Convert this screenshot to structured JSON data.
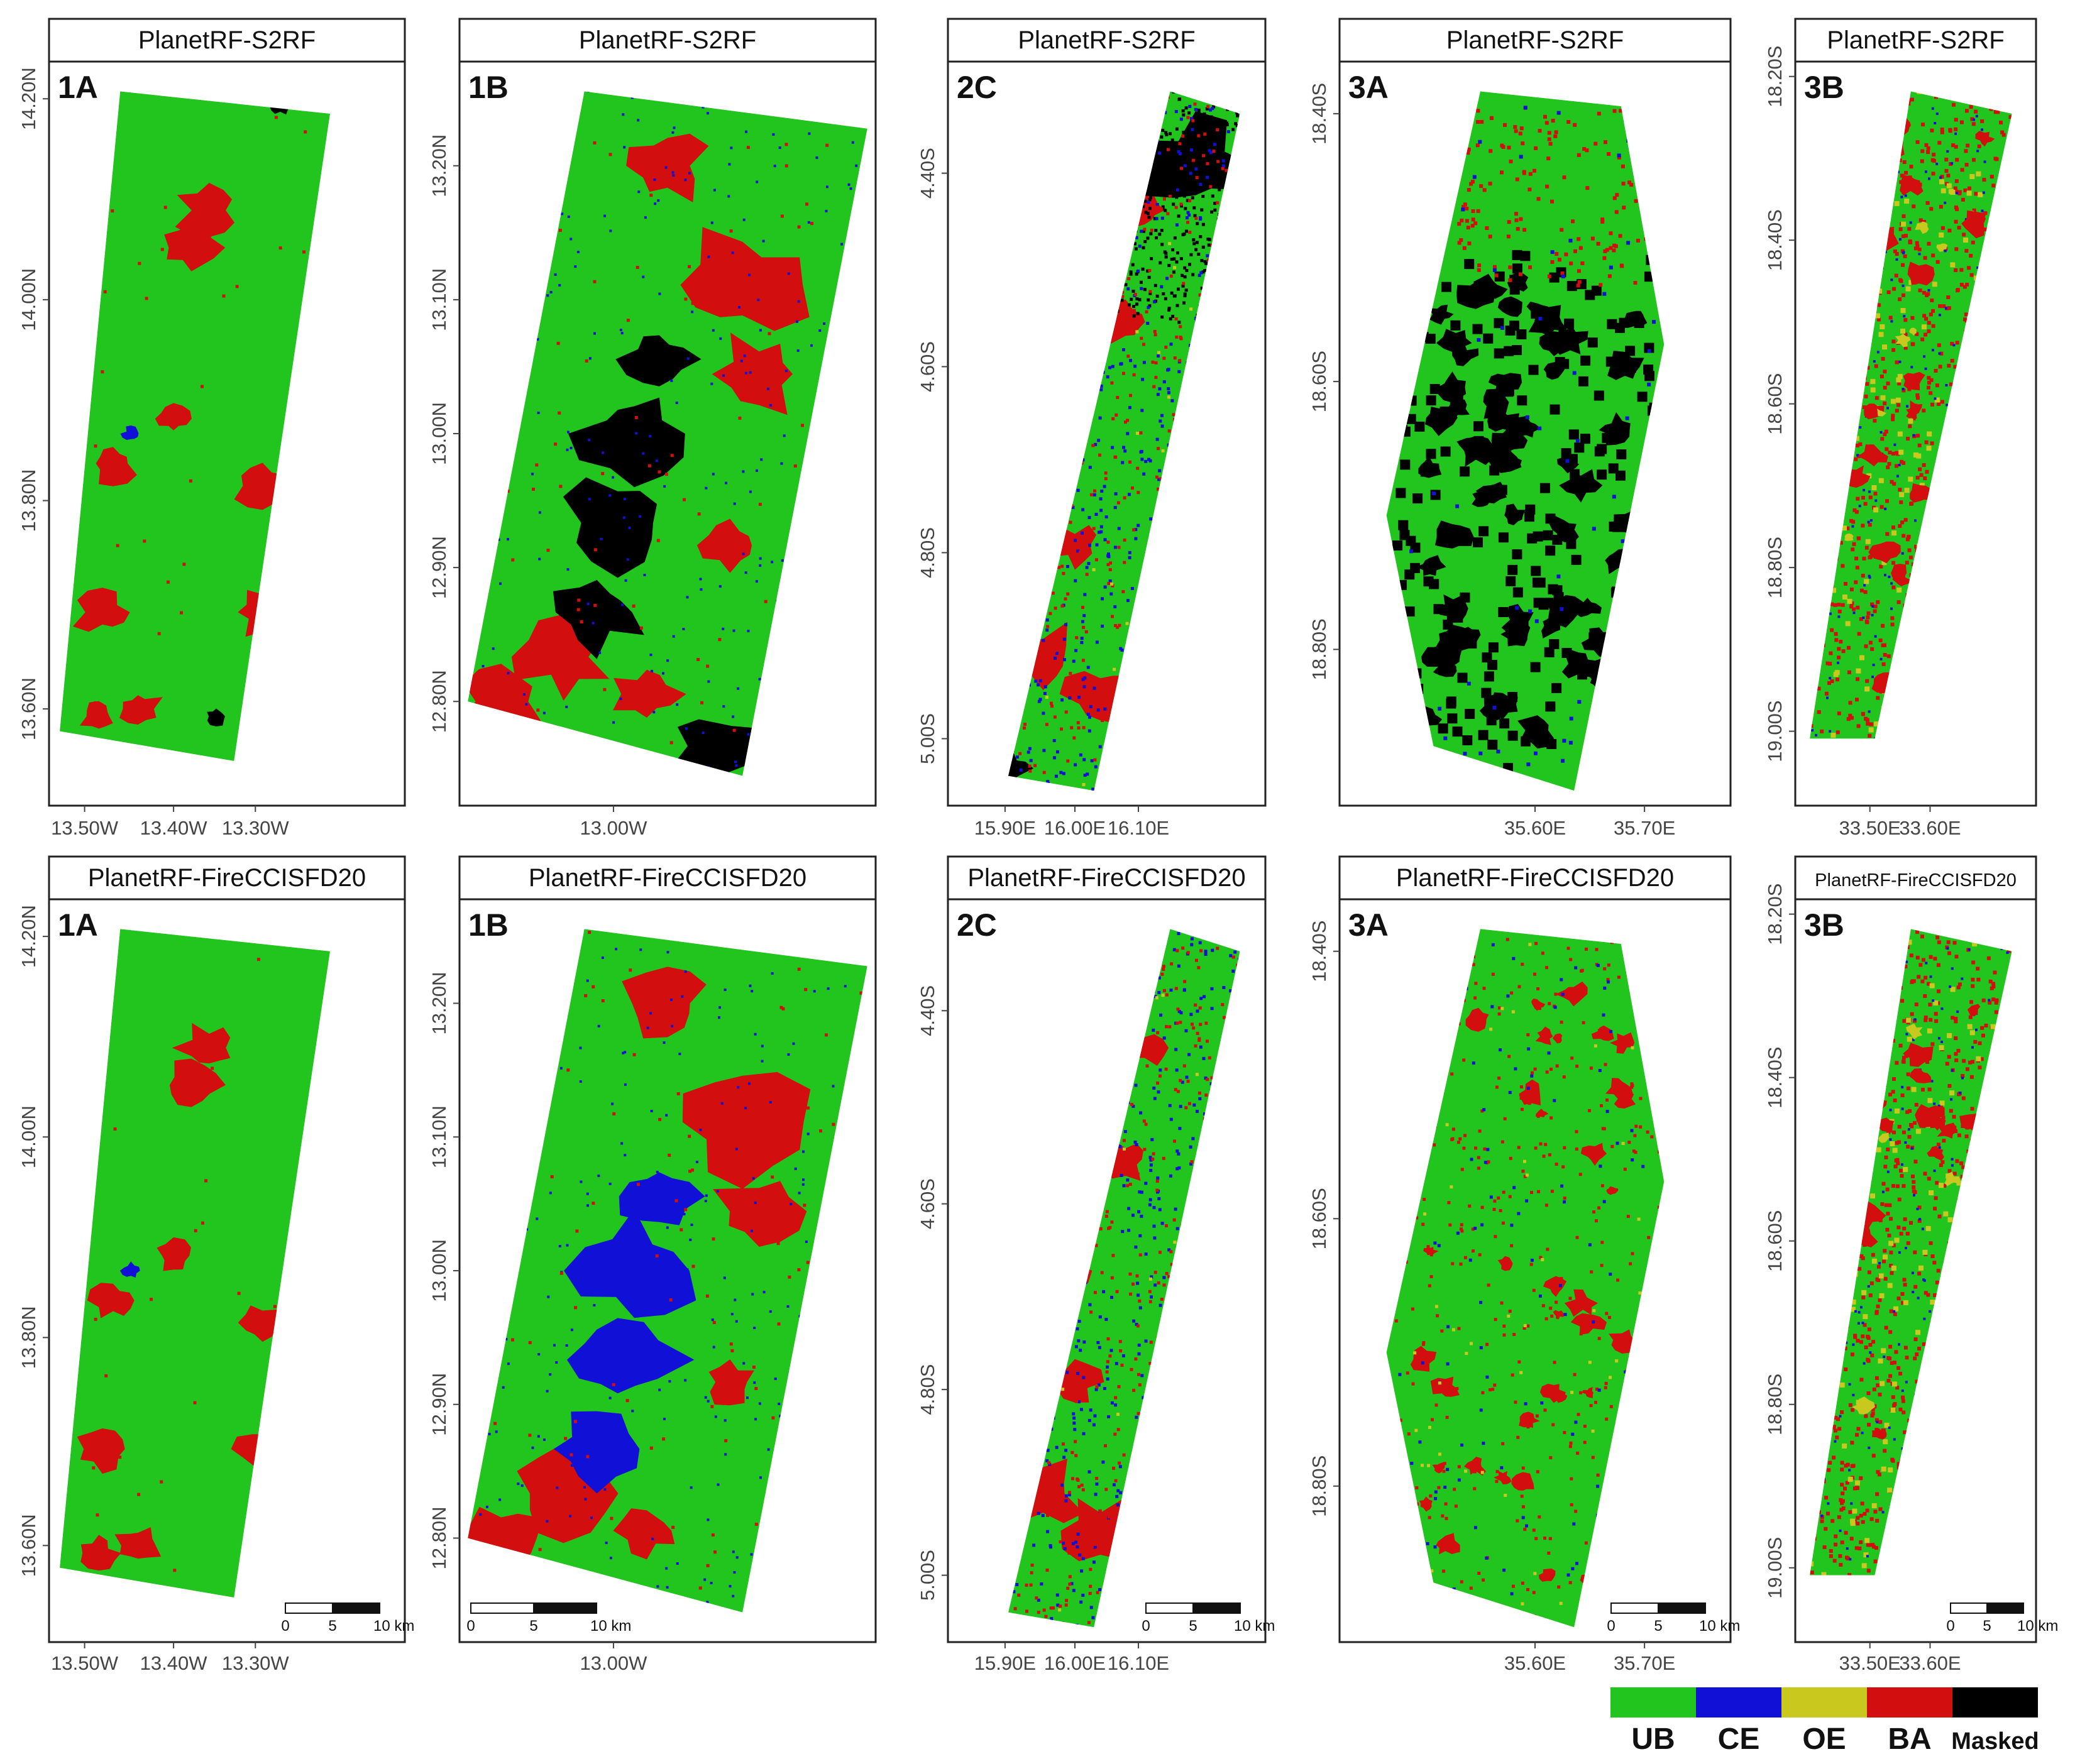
{
  "colors": {
    "UB": "#22c41e",
    "CE": "#1010d6",
    "OE": "#c8c81e",
    "BA": "#d20e0e",
    "Masked": "#000000"
  },
  "legend": [
    {
      "label": "UB",
      "color": "#22c41e"
    },
    {
      "label": "CE",
      "color": "#1010d6"
    },
    {
      "label": "OE",
      "color": "#c8c81e"
    },
    {
      "label": "BA",
      "color": "#d20e0e"
    },
    {
      "label": "Masked",
      "color": "#000000"
    }
  ],
  "panels": [
    {
      "id": "r1c1",
      "title": "PlanetRF-S2RF",
      "label": "1A",
      "lat_ticks": [
        "14.20N",
        "14.00N",
        "13.80N",
        "13.60N"
      ],
      "lon_ticks": [
        "13.50W",
        "13.40W",
        "13.30W"
      ],
      "scalebar": null
    },
    {
      "id": "r1c2",
      "title": "PlanetRF-S2RF",
      "label": "1B",
      "lat_ticks": [
        "13.20N",
        "13.10N",
        "13.00N",
        "12.90N",
        "12.80N"
      ],
      "lon_ticks": [
        "13.00W"
      ],
      "scalebar": null
    },
    {
      "id": "r1c3",
      "title": "PlanetRF-S2RF",
      "label": "2C",
      "lat_ticks": [
        "4.40S",
        "4.60S",
        "4.80S",
        "5.00S"
      ],
      "lon_ticks": [
        "15.90E",
        "16.00E",
        "16.10E"
      ],
      "scalebar": null
    },
    {
      "id": "r1c4",
      "title": "PlanetRF-S2RF",
      "label": "3A",
      "lat_ticks": [
        "18.40S",
        "18.60S",
        "18.80S"
      ],
      "lon_ticks": [
        "35.60E",
        "35.70E"
      ],
      "scalebar": null
    },
    {
      "id": "r1c5",
      "title": "PlanetRF-S2RF",
      "label": "3B",
      "lat_ticks": [
        "18.20S",
        "18.40S",
        "18.60S",
        "18.80S",
        "19.00S"
      ],
      "lon_ticks": [
        "33.50E",
        "33.60E"
      ],
      "scalebar": null
    },
    {
      "id": "r2c1",
      "title": "PlanetRF-FireCCISFD20",
      "label": "1A",
      "lat_ticks": [
        "14.20N",
        "14.00N",
        "13.80N",
        "13.60N"
      ],
      "lon_ticks": [
        "13.50W",
        "13.40W",
        "13.30W"
      ],
      "scalebar": {
        "labels": [
          "0",
          "5",
          "10 km"
        ]
      }
    },
    {
      "id": "r2c2",
      "title": "PlanetRF-FireCCISFD20",
      "label": "1B",
      "lat_ticks": [
        "13.20N",
        "13.10N",
        "13.00N",
        "12.90N",
        "12.80N"
      ],
      "lon_ticks": [
        "13.00W"
      ],
      "scalebar": {
        "labels": [
          "0",
          "5",
          "10 km"
        ]
      }
    },
    {
      "id": "r2c3",
      "title": "PlanetRF-FireCCISFD20",
      "label": "2C",
      "lat_ticks": [
        "4.40S",
        "4.60S",
        "4.80S",
        "5.00S"
      ],
      "lon_ticks": [
        "15.90E",
        "16.00E",
        "16.10E"
      ],
      "scalebar": {
        "labels": [
          "0",
          "5",
          "10 km"
        ]
      }
    },
    {
      "id": "r2c4",
      "title": "PlanetRF-FireCCISFD20",
      "label": "3A",
      "lat_ticks": [
        "18.40S",
        "18.60S",
        "18.80S"
      ],
      "lon_ticks": [
        "35.60E",
        "35.70E"
      ],
      "scalebar": {
        "labels": [
          "0",
          "5",
          "10 km"
        ]
      }
    },
    {
      "id": "r2c5",
      "title": "PlanetRF-FireCCISFD20",
      "label": "3B",
      "lat_ticks": [
        "18.20S",
        "18.40S",
        "18.60S",
        "18.80S",
        "19.00S"
      ],
      "lon_ticks": [
        "33.50E",
        "33.60E"
      ],
      "scalebar": {
        "labels": [
          "0",
          "5",
          "10 km"
        ]
      }
    }
  ]
}
